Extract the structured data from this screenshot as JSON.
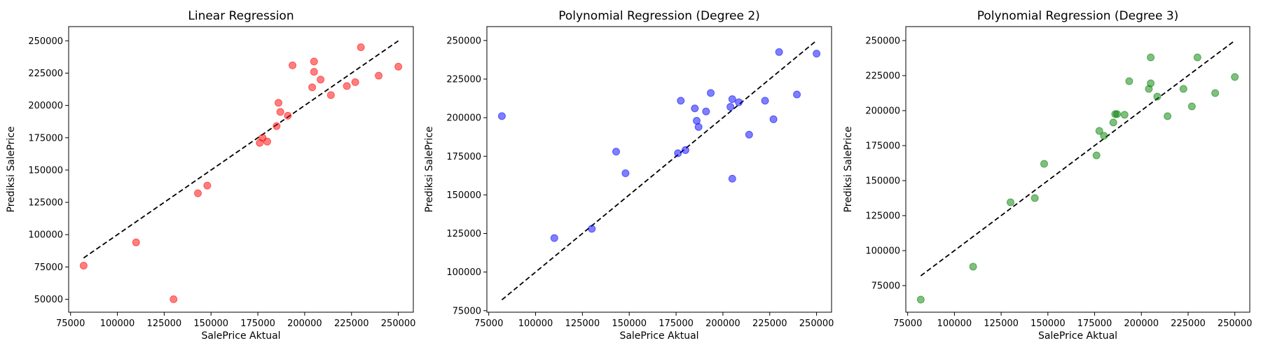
{
  "figure": {
    "background": "#ffffff"
  },
  "chart_data": [
    {
      "type": "scatter",
      "title": "Linear Regression",
      "xlabel": "SalePrice Aktual",
      "ylabel": "Prediksi SalePrice",
      "color": "#ff0000",
      "xlim": [
        74000,
        258000
      ],
      "ylim": [
        40000,
        261000
      ],
      "xticks": [
        75000,
        100000,
        125000,
        150000,
        175000,
        200000,
        225000,
        250000
      ],
      "yticks": [
        50000,
        75000,
        100000,
        125000,
        150000,
        175000,
        200000,
        225000,
        250000
      ],
      "reference_line": {
        "style": "dashed",
        "color": "#000000",
        "x": [
          82000,
          250000
        ],
        "y": [
          82000,
          250000
        ]
      },
      "points": [
        [
          82000,
          76000
        ],
        [
          110000,
          94000
        ],
        [
          130000,
          50000
        ],
        [
          143000,
          132000
        ],
        [
          148000,
          138000
        ],
        [
          176000,
          171000
        ],
        [
          177500,
          175000
        ],
        [
          180000,
          172000
        ],
        [
          185000,
          184000
        ],
        [
          186000,
          202000
        ],
        [
          187000,
          195000
        ],
        [
          191000,
          192000
        ],
        [
          193500,
          231000
        ],
        [
          204000,
          214000
        ],
        [
          205000,
          234000
        ],
        [
          205000,
          226000
        ],
        [
          208500,
          220000
        ],
        [
          214000,
          208000
        ],
        [
          222500,
          215000
        ],
        [
          227000,
          218000
        ],
        [
          230000,
          245000
        ],
        [
          239500,
          223000
        ],
        [
          250000,
          230000
        ]
      ]
    },
    {
      "type": "scatter",
      "title": "Polynomial Regression (Degree 2)",
      "xlabel": "SalePrice Aktual",
      "ylabel": "Prediksi SalePrice",
      "color": "#0000ff",
      "xlim": [
        74000,
        258000
      ],
      "ylim": [
        74000,
        259000
      ],
      "xticks": [
        75000,
        100000,
        125000,
        150000,
        175000,
        200000,
        225000,
        250000
      ],
      "yticks": [
        75000,
        100000,
        125000,
        150000,
        175000,
        200000,
        225000,
        250000
      ],
      "reference_line": {
        "style": "dashed",
        "color": "#000000",
        "x": [
          82000,
          250000
        ],
        "y": [
          82000,
          250000
        ]
      },
      "points": [
        [
          82000,
          201000
        ],
        [
          110000,
          122000
        ],
        [
          130000,
          128000
        ],
        [
          143000,
          178000
        ],
        [
          148000,
          164000
        ],
        [
          176000,
          177000
        ],
        [
          177500,
          211000
        ],
        [
          180000,
          179000
        ],
        [
          185000,
          206000
        ],
        [
          186000,
          198000
        ],
        [
          187000,
          194000
        ],
        [
          191000,
          204000
        ],
        [
          193500,
          216000
        ],
        [
          204000,
          207000
        ],
        [
          205000,
          212000
        ],
        [
          205000,
          160500
        ],
        [
          208500,
          210000
        ],
        [
          214000,
          189000
        ],
        [
          222500,
          211000
        ],
        [
          227000,
          199000
        ],
        [
          230000,
          242500
        ],
        [
          239500,
          215000
        ],
        [
          250000,
          241500
        ]
      ]
    },
    {
      "type": "scatter",
      "title": "Polynomial Regression (Degree 3)",
      "xlabel": "SalePrice Aktual",
      "ylabel": "Prediksi SalePrice",
      "color": "#008000",
      "xlim": [
        74000,
        258000
      ],
      "ylim": [
        56000,
        260000
      ],
      "xticks": [
        75000,
        100000,
        125000,
        150000,
        175000,
        200000,
        225000,
        250000
      ],
      "yticks": [
        75000,
        100000,
        125000,
        150000,
        175000,
        200000,
        225000,
        250000
      ],
      "reference_line": {
        "style": "dashed",
        "color": "#000000",
        "x": [
          82000,
          250000
        ],
        "y": [
          82000,
          250000
        ]
      },
      "points": [
        [
          82000,
          65000
        ],
        [
          110000,
          88500
        ],
        [
          130000,
          134500
        ],
        [
          143000,
          137500
        ],
        [
          148000,
          162000
        ],
        [
          176000,
          168000
        ],
        [
          177500,
          185500
        ],
        [
          180000,
          182000
        ],
        [
          185000,
          191500
        ],
        [
          186000,
          197500
        ],
        [
          187000,
          197500
        ],
        [
          191000,
          197000
        ],
        [
          193500,
          221000
        ],
        [
          204000,
          215500
        ],
        [
          205000,
          238000
        ],
        [
          205000,
          219500
        ],
        [
          208500,
          210000
        ],
        [
          214000,
          196000
        ],
        [
          222500,
          215500
        ],
        [
          227000,
          203000
        ],
        [
          230000,
          238000
        ],
        [
          239500,
          212500
        ],
        [
          250000,
          224000
        ]
      ]
    }
  ]
}
